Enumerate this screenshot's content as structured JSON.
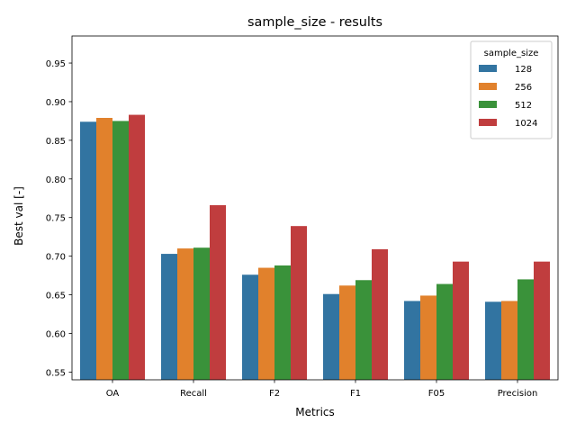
{
  "chart_data": {
    "type": "bar",
    "title": "sample_size - results",
    "xlabel": "Metrics",
    "ylabel": "Best val [-]",
    "ylim": [
      0.54,
      0.985
    ],
    "yticks": [
      0.55,
      0.6,
      0.65,
      0.7,
      0.75,
      0.8,
      0.85,
      0.9,
      0.95
    ],
    "grid": false,
    "legend": {
      "title": "sample_size",
      "placement": "top-right"
    },
    "categories": [
      "OA",
      "Recall",
      "F2",
      "F1",
      "F05",
      "Precision"
    ],
    "series": [
      {
        "name": "128",
        "color": "#3274a1",
        "values": [
          0.874,
          0.703,
          0.676,
          0.651,
          0.642,
          0.641
        ]
      },
      {
        "name": "256",
        "color": "#e1812c",
        "values": [
          0.879,
          0.71,
          0.685,
          0.662,
          0.649,
          0.642
        ]
      },
      {
        "name": "512",
        "color": "#3a923a",
        "values": [
          0.875,
          0.711,
          0.688,
          0.669,
          0.664,
          0.67
        ]
      },
      {
        "name": "1024",
        "color": "#c03d3e",
        "values": [
          0.883,
          0.766,
          0.739,
          0.709,
          0.693,
          0.693
        ]
      }
    ]
  }
}
